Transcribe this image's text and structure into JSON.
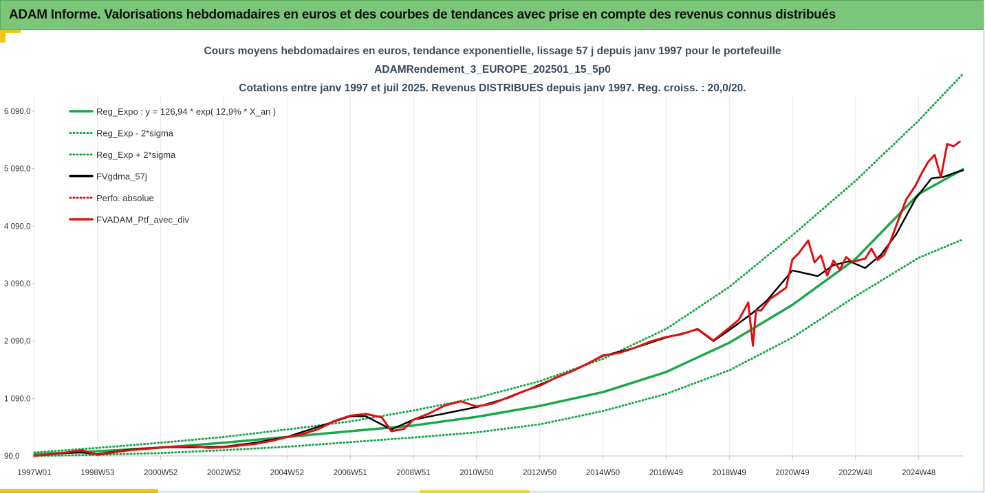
{
  "banner": {
    "title": "ADAM Informe. Valorisations hebdomadaires en euros et des courbes de tendances avec prise en compte des revenus connus distribués"
  },
  "colors": {
    "banner_bg": "#7cc67a",
    "trend": "#1aa84a",
    "gdma": "#000000",
    "perfo": "#e01010",
    "ptf": "#e01010",
    "accent": "#f5c518"
  },
  "chart_data": {
    "type": "line",
    "title_lines": [
      "Cours moyens hebdomadaires en euros, tendance exponentielle, lissage 57 j depuis janv 1997 pour le portefeuille",
      "ADAMRendement_3_EUROPE_202501_15_5p0",
      "Cotations entre janv 1997 et juil 2025. Revenus DISTRIBUES depuis janv 1997. Reg. croiss. : 20,0/20."
    ],
    "xlabel": "",
    "ylabel": "",
    "x_tick_labels": [
      "1997W01",
      "1998W53",
      "2000W52",
      "2002W52",
      "2004W52",
      "2006W51",
      "2008W51",
      "2010W50",
      "2012W50",
      "2014W50",
      "2016W49",
      "2018W49",
      "2020W49",
      "2022W48",
      "2024W48"
    ],
    "x_tick_years": [
      1997.0,
      1999.0,
      2001.0,
      2003.0,
      2005.0,
      2007.0,
      2009.0,
      2011.0,
      2013.0,
      2015.0,
      2017.0,
      2019.0,
      2021.0,
      2023.0,
      2025.0
    ],
    "xlim": [
      1997.0,
      2026.4
    ],
    "y_tick_labels": [
      "90,0",
      "1 090,0",
      "2 090,0",
      "3 090,0",
      "4 090,0",
      "5 090,0",
      "6 090,0"
    ],
    "y_ticks": [
      90,
      1090,
      2090,
      3090,
      4090,
      5090,
      6090
    ],
    "ylim": [
      90,
      6090
    ],
    "grid": "vertical",
    "legend_position": "top-left",
    "legend": [
      {
        "label": "Reg_Expo : y = 126,94 * exp( 12,9% *  X_an )",
        "style": "solid-green"
      },
      {
        "label": "Reg_Exp - 2*sigma",
        "style": "dotted-green"
      },
      {
        "label": "Reg_Exp + 2*sigma",
        "style": "dotted-green"
      },
      {
        "label": "FVgdma_57j",
        "style": "solid-black"
      },
      {
        "label": "Perfo. absolue",
        "style": "dotted-red"
      },
      {
        "label": "FVADAM_Ptf_avec_div",
        "style": "solid-red"
      }
    ],
    "series": [
      {
        "name": "Reg_Expo : y = 126,94 * exp( 12,9% *  X_an )",
        "x": [
          1997,
          1999,
          2001,
          2003,
          2005,
          2007,
          2009,
          2011,
          2013,
          2015,
          2017,
          2019,
          2021,
          2023,
          2025,
          2026.4
        ],
        "y": [
          120,
          170,
          235,
          320,
          420,
          520,
          620,
          770,
          960,
          1200,
          1550,
          2060,
          2720,
          3520,
          4650,
          5080
        ]
      },
      {
        "name": "Reg_Exp - 2*sigma",
        "x": [
          1997,
          1999,
          2001,
          2003,
          2005,
          2007,
          2009,
          2011,
          2013,
          2015,
          2017,
          2019,
          2021,
          2023,
          2025,
          2026.4
        ],
        "y": [
          90,
          110,
          140,
          190,
          250,
          330,
          410,
          500,
          640,
          870,
          1170,
          1580,
          2150,
          2870,
          3540,
          3860
        ]
      },
      {
        "name": "Reg_Exp + 2*sigma",
        "x": [
          1997,
          1999,
          2001,
          2003,
          2005,
          2007,
          2009,
          2011,
          2013,
          2015,
          2017,
          2019,
          2021,
          2023,
          2025,
          2026.4
        ],
        "y": [
          150,
          230,
          320,
          420,
          550,
          690,
          880,
          1100,
          1390,
          1780,
          2300,
          3030,
          3930,
          4880,
          5930,
          6740
        ]
      },
      {
        "name": "FVgdma_57j",
        "x": [
          1997,
          1998,
          1998.5,
          1999,
          2000,
          2001,
          2002,
          2003,
          2004,
          2005,
          2006,
          2007,
          2007.5,
          2008.3,
          2009,
          2010,
          2011,
          2012,
          2013,
          2014,
          2015,
          2016,
          2017,
          2018,
          2018.5,
          2019,
          2019.7,
          2020.2,
          2021,
          2021.8,
          2022.3,
          2022.8,
          2023.3,
          2023.8,
          2024.3,
          2024.9,
          2025.4,
          2025.8,
          2026.2,
          2026.4
        ],
        "y": [
          90,
          140,
          150,
          120,
          200,
          240,
          240,
          250,
          320,
          420,
          600,
          780,
          780,
          550,
          720,
          830,
          940,
          1100,
          1330,
          1560,
          1830,
          1970,
          2150,
          2290,
          2090,
          2280,
          2560,
          2800,
          3320,
          3220,
          3410,
          3480,
          3360,
          3590,
          3960,
          4570,
          4920,
          4950,
          5030,
          5060
        ]
      },
      {
        "name": "FVADAM_Ptf_avec_div",
        "x": [
          1997,
          1997.5,
          1998,
          1998.5,
          1999,
          1999.5,
          2000,
          2000.5,
          2001,
          2001.5,
          2002,
          2002.5,
          2003,
          2003.5,
          2004,
          2004.5,
          2005,
          2005.5,
          2006,
          2006.5,
          2007,
          2007.5,
          2008,
          2008.3,
          2008.7,
          2009,
          2009.5,
          2010,
          2010.5,
          2011,
          2011.5,
          2012,
          2012.5,
          2013,
          2013.5,
          2014,
          2014.5,
          2015,
          2015.5,
          2016,
          2016.5,
          2017,
          2017.5,
          2018,
          2018.5,
          2019,
          2019.3,
          2019.6,
          2019.75,
          2019.85,
          2020,
          2020.3,
          2020.5,
          2020.8,
          2021,
          2021.2,
          2021.5,
          2021.7,
          2021.9,
          2022.1,
          2022.3,
          2022.5,
          2022.7,
          2022.9,
          2023.1,
          2023.3,
          2023.5,
          2023.7,
          2023.9,
          2024.1,
          2024.3,
          2024.6,
          2024.9,
          2025.1,
          2025.3,
          2025.5,
          2025.7,
          2025.9,
          2026.1,
          2026.3
        ],
        "y": [
          90,
          120,
          150,
          190,
          110,
          150,
          190,
          210,
          240,
          250,
          260,
          230,
          240,
          270,
          300,
          350,
          420,
          470,
          560,
          700,
          790,
          820,
          760,
          520,
          560,
          720,
          830,
          970,
          1040,
          950,
          1000,
          1110,
          1220,
          1310,
          1450,
          1560,
          1690,
          1840,
          1880,
          1970,
          2080,
          2160,
          2210,
          2300,
          2100,
          2320,
          2460,
          2760,
          2010,
          2630,
          2620,
          2830,
          2900,
          3020,
          3510,
          3620,
          3840,
          3460,
          3580,
          3230,
          3490,
          3330,
          3550,
          3460,
          3500,
          3520,
          3700,
          3500,
          3590,
          3820,
          4120,
          4550,
          4800,
          5020,
          5210,
          5330,
          4940,
          5520,
          5480,
          5560
        ]
      }
    ]
  }
}
